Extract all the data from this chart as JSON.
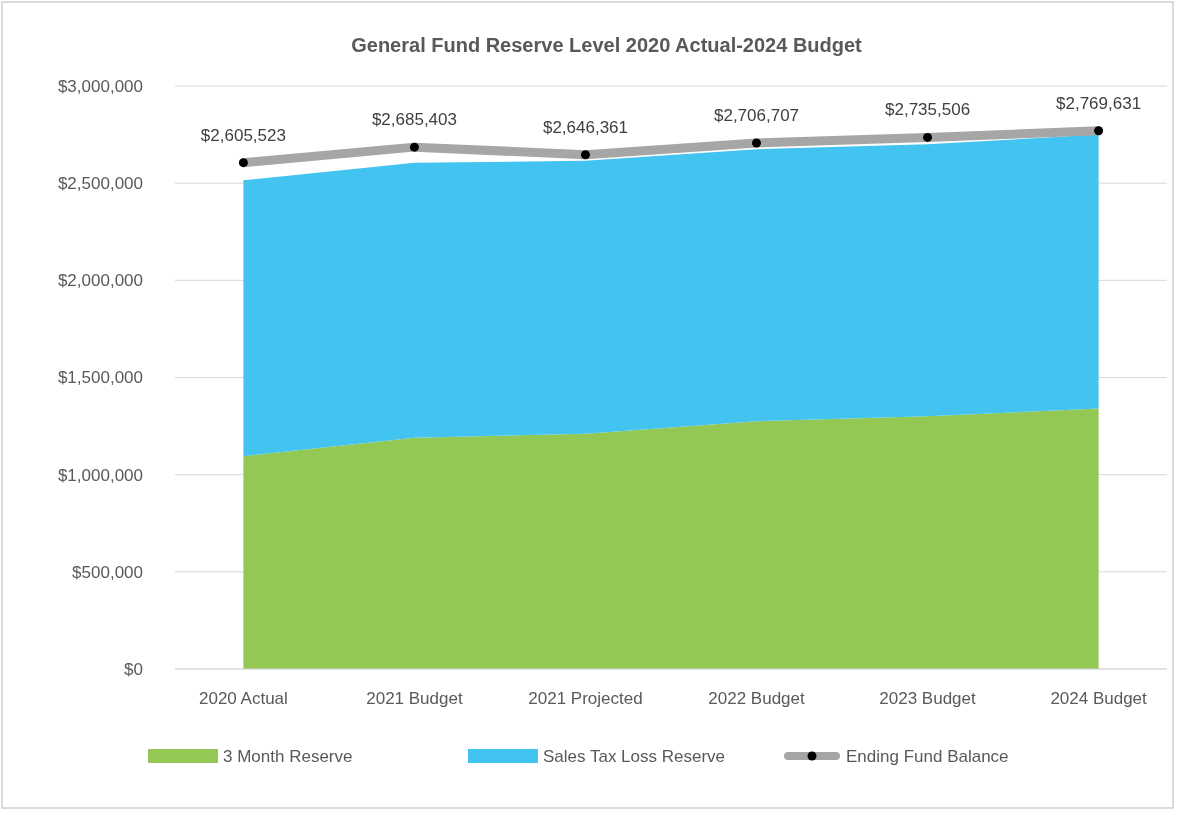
{
  "chart_data": {
    "type": "area",
    "title": "General Fund Reserve Level 2020 Actual-2024 Budget",
    "categories": [
      "2020 Actual",
      "2021 Budget",
      "2021 Projected",
      "2022 Budget",
      "2023 Budget",
      "2024 Budget"
    ],
    "stacked": true,
    "series": [
      {
        "name": "3 Month Reserve",
        "color": "#92c853",
        "values": [
          1095000,
          1190000,
          1210000,
          1275000,
          1300000,
          1340000
        ]
      },
      {
        "name": "Sales Tax Loss Reserve",
        "color": "#42c3f0",
        "values": [
          1420000,
          1415000,
          1405000,
          1400000,
          1400000,
          1410000
        ]
      },
      {
        "name": "Ending Fund Balance",
        "type": "line",
        "color": "#a6a6a6",
        "marker": "circle",
        "values": [
          2605523,
          2685403,
          2646361,
          2706707,
          2735506,
          2769631
        ],
        "value_labels": [
          "$2,605,523",
          "$2,685,403",
          "$2,646,361",
          "$2,706,707",
          "$2,735,506",
          "$2,769,631"
        ]
      }
    ],
    "ylim": [
      0,
      3000000
    ],
    "yticks": [
      {
        "value": 0,
        "label": "$0"
      },
      {
        "value": 500000,
        "label": "$500,000"
      },
      {
        "value": 1000000,
        "label": "$1,000,000"
      },
      {
        "value": 1500000,
        "label": "$1,500,000"
      },
      {
        "value": 2000000,
        "label": "$2,000,000"
      },
      {
        "value": 2500000,
        "label": "$2,500,000"
      },
      {
        "value": 3000000,
        "label": "$3,000,000"
      }
    ],
    "grid": "y",
    "legend": "bottom"
  }
}
